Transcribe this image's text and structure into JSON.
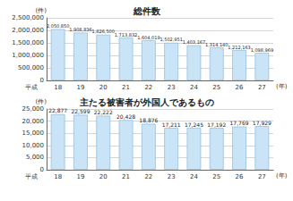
{
  "chart_data": [
    {
      "type": "bar",
      "title": "総件数",
      "y_label": "(件)",
      "x_label": "(年)",
      "annotation": "平成",
      "categories": [
        "18",
        "19",
        "20",
        "21",
        "22",
        "23",
        "24",
        "25",
        "26",
        "27"
      ],
      "values": [
        2050850,
        1908836,
        1826500,
        1713832,
        1604019,
        1502951,
        1403167,
        1314140,
        1212163,
        1098969
      ],
      "value_labels": [
        "2,050,850",
        "1,908,836",
        "1,826,500",
        "1,713,832",
        "1,604,019",
        "1,502,951",
        "1,403,167",
        "1,314,140",
        "1,212,163",
        "1,098,969"
      ],
      "color": "#c9e4f6",
      "data_labels": true,
      "grid": true,
      "ylim": [
        0,
        2500000
      ],
      "yticks": [
        0,
        {
          "value": 500000,
          "label": "500,000"
        },
        {
          "value": 1000000,
          "label": "1,000,000"
        },
        {
          "value": 1500000,
          "label": "1,500,000"
        },
        {
          "value": 2000000,
          "label": "2,000,000"
        },
        {
          "value": 2500000,
          "label": "2,500,000"
        }
      ]
    },
    {
      "type": "bar",
      "title": "主たる被害者が外国人であるもの",
      "y_label": "(件)",
      "x_label": "(年)",
      "annotation": "平成",
      "categories": [
        "18",
        "19",
        "20",
        "21",
        "22",
        "23",
        "24",
        "25",
        "26",
        "27"
      ],
      "values": [
        22877,
        22599,
        22222,
        20428,
        18876,
        17211,
        17245,
        17192,
        17769,
        17929
      ],
      "value_labels": [
        "22,877",
        "22,599",
        "22,222",
        "20,428",
        "18,876",
        "17,211",
        "17,245",
        "17,192",
        "17,769",
        "17,929"
      ],
      "color": "#c9e4f6",
      "data_labels": true,
      "grid": true,
      "ylim": [
        0,
        25000
      ],
      "yticks": [
        0,
        {
          "value": 5000,
          "label": "5,000"
        },
        {
          "value": 10000,
          "label": "10,000"
        },
        {
          "value": 15000,
          "label": "15,000"
        },
        {
          "value": 20000,
          "label": "20,000"
        },
        {
          "value": 25000,
          "label": "25,000"
        }
      ]
    }
  ]
}
